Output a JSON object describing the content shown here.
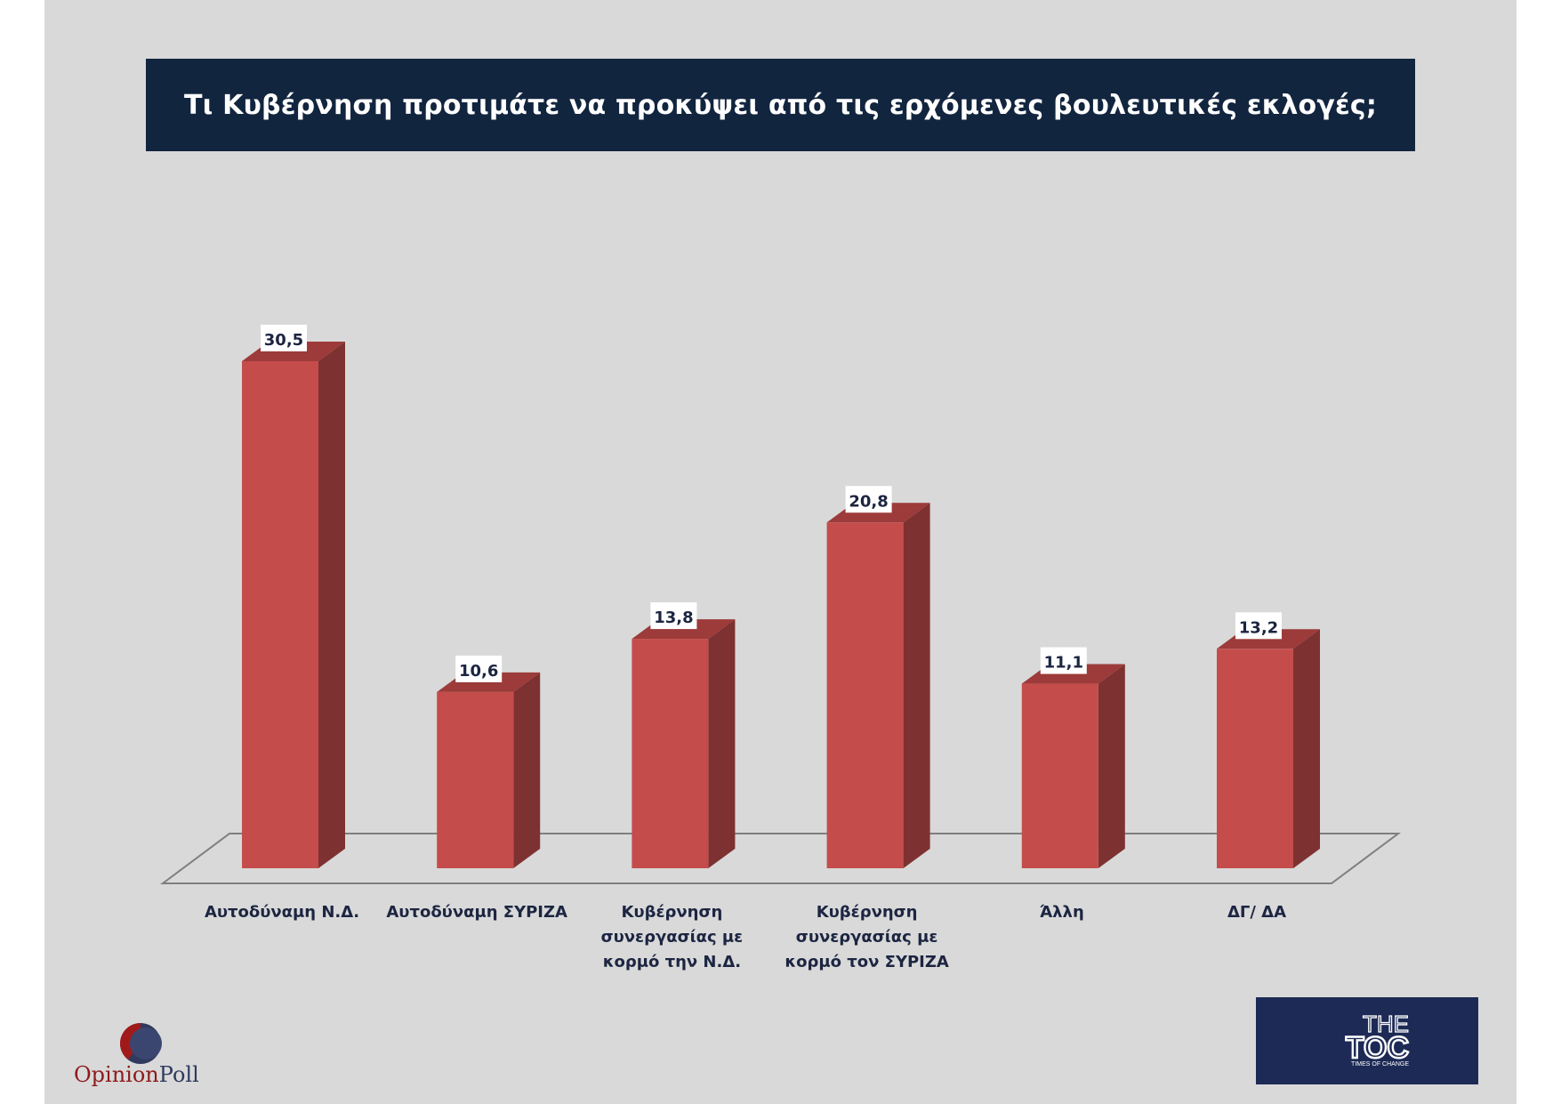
{
  "title": "Τι Κυβέρνηση προτιμάτε να προκύψει από τις ερχόμενες βουλευτικές εκλογές;",
  "chart_data": {
    "type": "bar",
    "style": "3d-column",
    "categories": [
      [
        "Αυτοδύναμη Ν.Δ."
      ],
      [
        "Αυτοδύναμη ΣΥΡΙΖΑ"
      ],
      [
        "Κυβέρνηση",
        "συνεργασίας με",
        "κορμό την Ν.Δ."
      ],
      [
        "Κυβέρνηση",
        "συνεργασίας με",
        "κορμό τον ΣΥΡΙΖΑ"
      ],
      [
        "Άλλη"
      ],
      [
        "ΔΓ/ ΔΑ"
      ]
    ],
    "values": [
      30.5,
      10.6,
      13.8,
      20.8,
      11.1,
      13.2
    ],
    "value_labels": [
      "30,5",
      "10,6",
      "13,8",
      "20,8",
      "11,1",
      "13,2"
    ],
    "ylim": [
      0,
      32
    ],
    "grid": false,
    "legend": "none",
    "colors": {
      "bar_front": "#c44d4b",
      "bar_side": "#7e3131",
      "bar_top": "#9c3b3a",
      "floor_line": "#7f7f7f",
      "label_text": "#1c2541"
    }
  },
  "logos": {
    "left": {
      "word1": "Opinion",
      "word2": "Poll",
      "icon": "opinionpoll-circle-logo"
    },
    "right": {
      "line1": "THE",
      "line2": "TOC",
      "tagline": "TIMES OF CHANGE",
      "icon": "thetoc-logo"
    }
  },
  "colors": {
    "background": "#d9d9d9",
    "title_bar": "#12253f",
    "title_text": "#ffffff",
    "logo_right_bg": "#1d2a55"
  }
}
